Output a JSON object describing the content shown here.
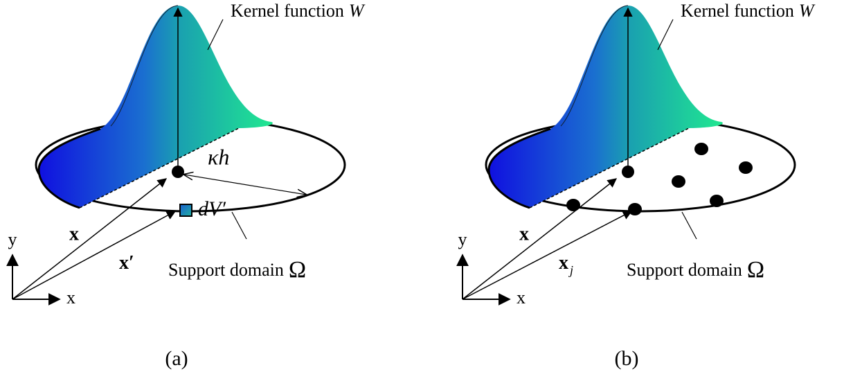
{
  "panels": [
    {
      "kernel_label": "Kernel function",
      "kernel_symbol": "W",
      "radius_label": "κh",
      "volume_label": "dV′",
      "position_label": "x",
      "neighbor_label": "x′",
      "axis_y": "y",
      "axis_x": "x",
      "domain_label": "Support domain",
      "domain_symbol": "Ω",
      "caption": "(a)"
    },
    {
      "kernel_label": "Kernel function",
      "kernel_symbol": "W",
      "position_label": "x",
      "neighbor_label": "x",
      "neighbor_subscript": "j",
      "axis_y": "y",
      "axis_x": "x",
      "domain_label": "Support domain",
      "domain_symbol": "Ω",
      "caption": "(b)"
    }
  ]
}
